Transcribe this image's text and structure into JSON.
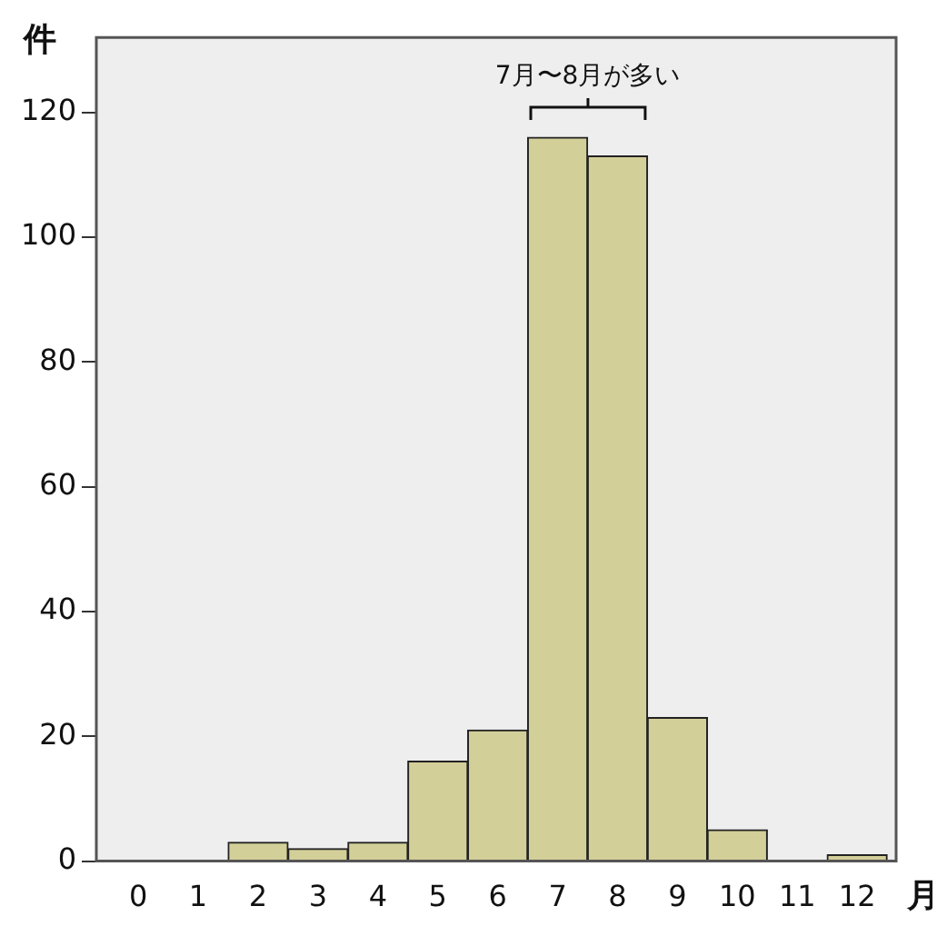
{
  "chart_data": {
    "type": "histogram",
    "bins": [
      -0.5,
      0.5,
      1.5,
      2.5,
      3.5,
      4.5,
      5.5,
      6.5,
      7.5,
      8.5,
      9.5,
      10.5,
      11.5,
      12.5
    ],
    "values": [
      0,
      0,
      3,
      2,
      3,
      16,
      21,
      116,
      113,
      23,
      5,
      0,
      1
    ],
    "color": "#d3cf98",
    "xlabel": "月",
    "ylabel": "件",
    "xlim": [
      -0.7,
      12.65
    ],
    "ylim": [
      0,
      132
    ],
    "xticks": [
      0,
      1,
      2,
      3,
      4,
      5,
      6,
      7,
      8,
      9,
      10,
      11,
      12
    ],
    "yticks": [
      0,
      20,
      40,
      60,
      80,
      100,
      120
    ],
    "annotations": [
      "7月〜8月が多い"
    ],
    "grid": false
  }
}
